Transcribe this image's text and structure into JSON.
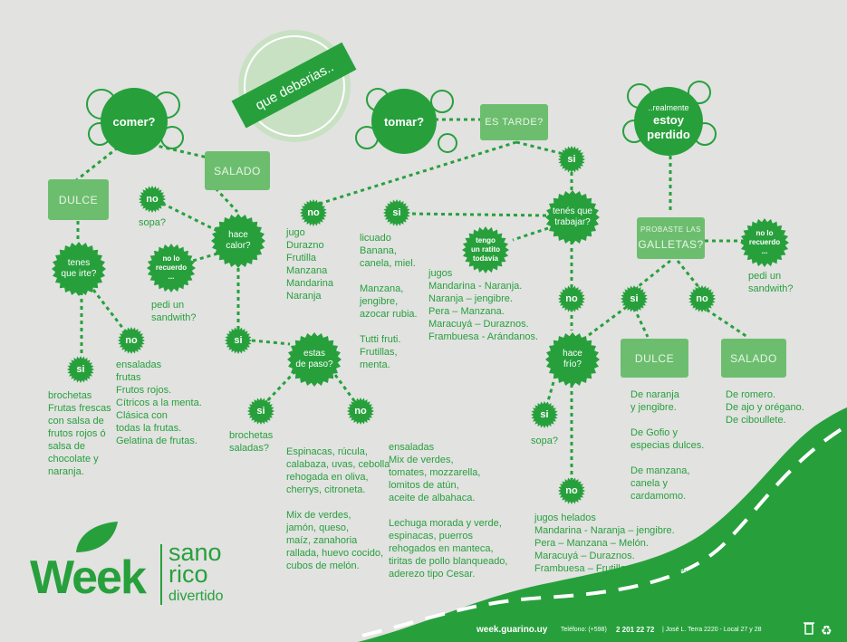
{
  "colors": {
    "background": "#e2e2e1",
    "green": "#27a03c",
    "light_green": "#6cbe6e",
    "white": "#ffffff"
  },
  "title_badge": "que deberias..",
  "nodes": {
    "comer": "comer?",
    "tomar": "tomar?",
    "perdido": {
      "small": "..realmente",
      "big": "estoy\nperdido"
    },
    "dulce_top": "DULCE",
    "salado_top": "SALADO",
    "es_tarde": "ES TARDE?",
    "probaste": {
      "small": "PROBASTE LAS",
      "big": "GALLETAS?"
    },
    "dulce_bottom": "DULCE",
    "salado_bottom": "SALADO",
    "tenes_que_irte": "tenes\nque irte?",
    "hace_calor": "hace\ncalor?",
    "estas_de_paso": "estas\nde paso?",
    "tenes_que_trabajar": "tenés que\ntrabajar?",
    "tengo_un_ratito": "tengo\nun ratito\ntodavía",
    "hace_frio": "hace\nfrío?",
    "no_lo_recuerdo_1": "no lo\nrecuerdo\n...",
    "no_lo_recuerdo_2": "no lo\nrecuerdo\n...",
    "si": "si",
    "no": "no"
  },
  "texts": {
    "sopa_1": "sopa?",
    "pedi_sandwith_1": "pedi un\nsandwith?",
    "ensaladas_list": "ensaladas\nfrutas\nFrutos rojos.\nCítricos a la menta.\nClásica con\ntodas la frutas.\nGelatina de frutas.",
    "brochetas_list": "brochetas\nFrutas frescas\ncon salsa de\nfrutos rojos ó\nsalsa de\nchocolate y\nnaranja.",
    "brochetas_saladas": "brochetas\nsaladas?",
    "jugo_list": "jugo\nDurazno\nFrutilla\nManzana\nMandarina\nNaranja",
    "licuado_list": "licuado\nBanana,\ncanela, miel.\n\nManzana,\njengibre,\nazocar rubia.\n\nTutti fruti.\nFrutillas,\nmenta.",
    "jugos_list": "jugos\nMandarina - Naranja.\nNaranja – jengibre.\nPera – Manzana.\nMaracuyá – Duraznos.\nFrambuesa - Arándanos.",
    "espinacas_list": "Espinacas, rúcula,\ncalabaza, uvas, cebolla\nrehogada en oliva,\ncherrys, citroneta.\n\nMix de verdes,\njamón, queso,\nmaíz, zanahoria\nrallada, huevo cocido,\ncubos de melón.",
    "ensaladas_list_2": "ensaladas\nMix de verdes,\ntomates, mozzarella,\nlomitos de atún,\naceite de albahaca.\n\nLechuga morada y verde,\nespinacas, puerros\nrehogados en manteca,\ntiritas de pollo blanqueado,\naderezo tipo Cesar.",
    "sopa_2": "sopa?",
    "jugos_helados_list": "jugos helados\nMandarina - Naranja – jengibre.\nPera – Manzana – Melón.\nMaracuyá – Duraznos.\nFrambuesa – Frutilla – Arándanos.",
    "dulce_list": "De naranja\ny jengibre.\n\nDe Gofio y\nespecias dulces.\n\nDe manzana,\ncanela y\ncardamomo.",
    "salado_list": "De romero.\nDe ajo y orégano.\nDe ciboullete.",
    "pedi_sandwith_2": "pedi un\nsandwith?"
  },
  "brand": {
    "logo": "Week",
    "tagline": [
      "sano",
      "rico",
      "divertido"
    ]
  },
  "footer": {
    "url": "week.guarino.uy",
    "phone_label": "Teléfono: (+598)",
    "phone": "2 201 22 72",
    "address": "| José L. Terra 2220 - Local 27 y 28"
  }
}
